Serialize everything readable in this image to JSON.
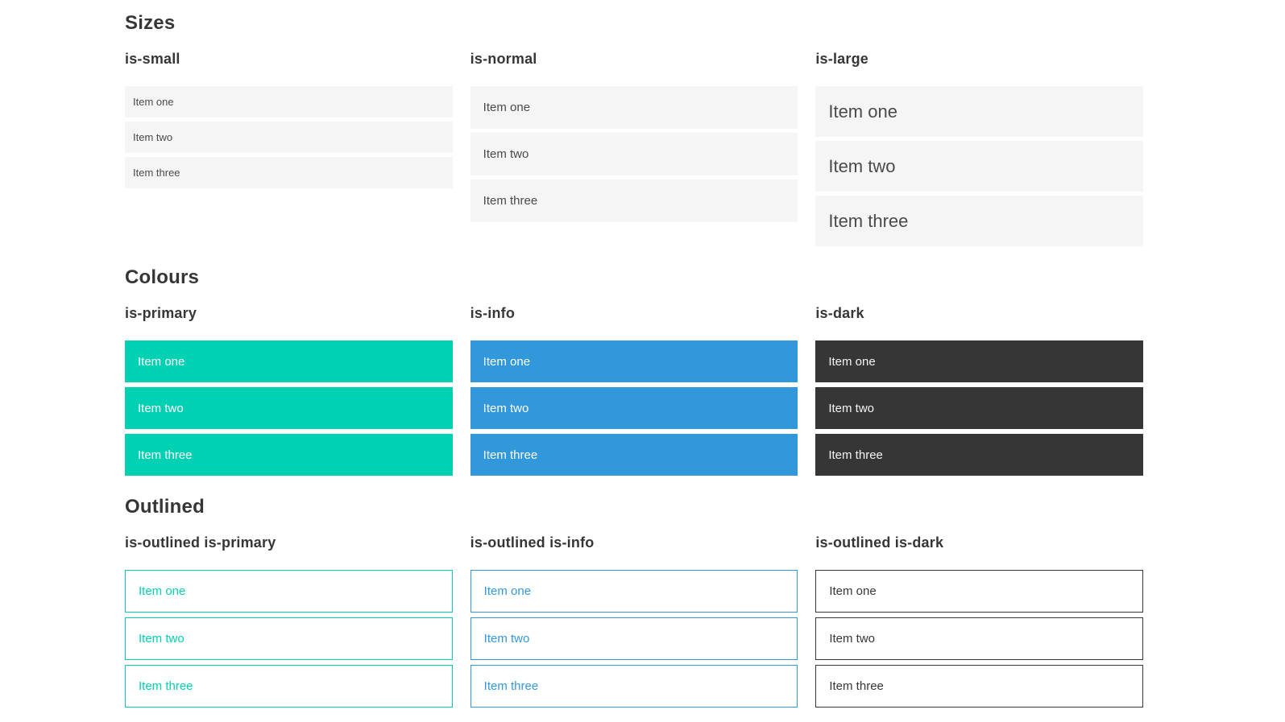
{
  "colors": {
    "primary": "#00d1b2",
    "info": "#3298dc",
    "dark": "#363636",
    "light-bg": "#f5f5f5",
    "item-text": "#4a4a4a",
    "heading-text": "#363636"
  },
  "sections": [
    {
      "title": "Sizes",
      "groups": [
        {
          "heading": "is-small",
          "variant": "small",
          "items": [
            "Item one",
            "Item two",
            "Item three"
          ]
        },
        {
          "heading": "is-normal",
          "variant": "normal",
          "items": [
            "Item one",
            "Item two",
            "Item three"
          ]
        },
        {
          "heading": "is-large",
          "variant": "large",
          "items": [
            "Item one",
            "Item two",
            "Item three"
          ]
        }
      ]
    },
    {
      "title": "Colours",
      "groups": [
        {
          "heading": "is-primary",
          "variant": "primary",
          "items": [
            "Item one",
            "Item two",
            "Item three"
          ]
        },
        {
          "heading": "is-info",
          "variant": "info",
          "items": [
            "Item one",
            "Item two",
            "Item three"
          ]
        },
        {
          "heading": "is-dark",
          "variant": "dark",
          "items": [
            "Item one",
            "Item two",
            "Item three"
          ]
        }
      ]
    },
    {
      "title": "Outlined",
      "groups": [
        {
          "heading": "is-outlined is-primary",
          "variant": "outlined-primary",
          "items": [
            "Item one",
            "Item two",
            "Item three"
          ]
        },
        {
          "heading": "is-outlined is-info",
          "variant": "outlined-info",
          "items": [
            "Item one",
            "Item two",
            "Item three"
          ]
        },
        {
          "heading": "is-outlined is-dark",
          "variant": "outlined-dark",
          "items": [
            "Item one",
            "Item two",
            "Item three"
          ]
        }
      ]
    }
  ]
}
